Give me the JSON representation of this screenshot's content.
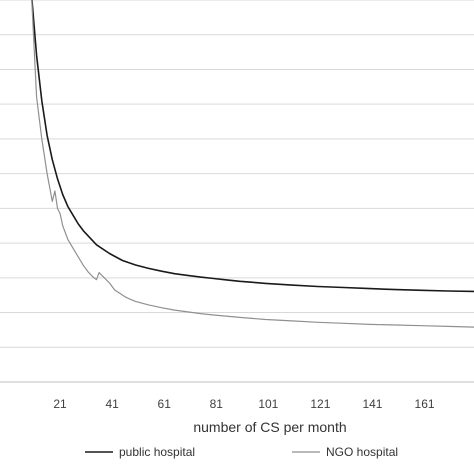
{
  "chart_data": {
    "type": "line",
    "title": "",
    "xlabel": "number of CS per month",
    "ylabel": "",
    "xlim": [
      1,
      180
    ],
    "ylim": [
      0,
      1.1
    ],
    "grid": true,
    "legend_position": "bottom",
    "x_ticks": [
      21,
      41,
      61,
      81,
      101,
      121,
      141,
      161
    ],
    "series": [
      {
        "name": "public hospital",
        "color": "#1a1a1a",
        "x": [
          10,
          12,
          14,
          16,
          18,
          20,
          22,
          24,
          26,
          28,
          30,
          35,
          40,
          45,
          50,
          55,
          60,
          65,
          70,
          75,
          80,
          85,
          90,
          95,
          100,
          110,
          120,
          130,
          140,
          150,
          160,
          170,
          180
        ],
        "values": [
          1.12,
          0.94,
          0.81,
          0.71,
          0.64,
          0.585,
          0.54,
          0.505,
          0.48,
          0.455,
          0.435,
          0.395,
          0.37,
          0.35,
          0.337,
          0.327,
          0.319,
          0.312,
          0.307,
          0.302,
          0.298,
          0.294,
          0.29,
          0.287,
          0.284,
          0.279,
          0.275,
          0.272,
          0.269,
          0.266,
          0.264,
          0.262,
          0.261
        ]
      },
      {
        "name": "NGO hospital",
        "color": "#909090",
        "x": [
          10,
          12,
          14,
          16,
          18,
          19,
          20,
          21,
          22,
          24,
          26,
          28,
          30,
          32,
          34,
          35,
          36,
          38,
          40,
          42,
          44,
          46,
          48,
          50,
          55,
          60,
          65,
          70,
          75,
          80,
          90,
          100,
          110,
          120,
          130,
          140,
          150,
          160,
          170,
          180
        ],
        "values": [
          1.12,
          0.82,
          0.7,
          0.6,
          0.52,
          0.55,
          0.5,
          0.485,
          0.45,
          0.41,
          0.385,
          0.36,
          0.335,
          0.315,
          0.3,
          0.295,
          0.315,
          0.3,
          0.285,
          0.265,
          0.255,
          0.245,
          0.238,
          0.232,
          0.222,
          0.214,
          0.207,
          0.202,
          0.197,
          0.193,
          0.186,
          0.18,
          0.176,
          0.172,
          0.169,
          0.166,
          0.164,
          0.162,
          0.16,
          0.158
        ]
      }
    ]
  }
}
